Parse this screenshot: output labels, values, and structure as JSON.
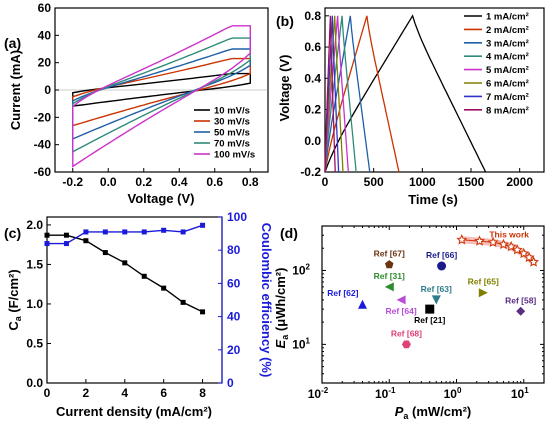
{
  "chart_data": [
    {
      "id": "a",
      "type": "line",
      "panel_label": "(a)",
      "xlabel": "Voltage (V)",
      "ylabel": "Current (mA)",
      "xlim": [
        -0.3,
        0.9
      ],
      "ylim": [
        -60,
        60
      ],
      "xticks": [
        "-0.2",
        "0.0",
        "0.2",
        "0.4",
        "0.6",
        "0.8"
      ],
      "yticks": [
        "60",
        "40",
        "20",
        "0",
        "-20",
        "-40",
        "-60"
      ],
      "legend_position": "bottom-right",
      "series": [
        {
          "name": "10 mV/s",
          "color": "#000000",
          "v": [
            -0.2,
            0.8
          ],
          "upper_end": 12,
          "upper_start": -2,
          "lower_start": -10,
          "lower_end": 5
        },
        {
          "name": "30 mV/s",
          "color": "#cc3300",
          "v": [
            -0.2,
            0.8
          ],
          "upper_end": 23,
          "upper_start": -5,
          "lower_start": -22,
          "lower_end": 12
        },
        {
          "name": "50 mV/s",
          "color": "#1f5fa8",
          "v": [
            -0.2,
            0.8
          ],
          "upper_end": 30,
          "upper_start": -8,
          "lower_start": -30,
          "lower_end": 18
        },
        {
          "name": "70 mV/s",
          "color": "#2e8b7a",
          "v": [
            -0.2,
            0.8
          ],
          "upper_end": 38,
          "upper_start": -10,
          "lower_start": -38,
          "lower_end": 22
        },
        {
          "name": "100 mV/s",
          "color": "#cc33cc",
          "v": [
            -0.2,
            0.8
          ],
          "upper_end": 47,
          "upper_start": -12,
          "lower_start": -47,
          "lower_end": 27
        }
      ]
    },
    {
      "id": "b",
      "type": "line",
      "panel_label": "(b)",
      "xlabel": "Time (s)",
      "ylabel": "Voltage (V)",
      "xlim": [
        0,
        2250
      ],
      "ylim": [
        -0.2,
        0.85
      ],
      "xticks": [
        "0",
        "500",
        "1000",
        "1500",
        "2000"
      ],
      "yticks": [
        "0.8",
        "0.6",
        "0.4",
        "0.2",
        "0.0",
        "-0.2"
      ],
      "legend_position": "top-right",
      "series": [
        {
          "name": "1 mA/cm²",
          "color": "#000000",
          "peak_t": 900,
          "end_t": 1650
        },
        {
          "name": "2 mA/cm²",
          "color": "#cc3300",
          "peak_t": 430,
          "end_t": 760
        },
        {
          "name": "3 mA/cm²",
          "color": "#1f5fa8",
          "peak_t": 260,
          "end_t": 460
        },
        {
          "name": "4 mA/cm²",
          "color": "#2e8b7a",
          "peak_t": 175,
          "end_t": 320
        },
        {
          "name": "5 mA/cm²",
          "color": "#cc33cc",
          "peak_t": 130,
          "end_t": 240
        },
        {
          "name": "6 mA/cm²",
          "color": "#808000",
          "peak_t": 100,
          "end_t": 185
        },
        {
          "name": "7 mA/cm²",
          "color": "#3333cc",
          "peak_t": 75,
          "end_t": 140
        },
        {
          "name": "8 mA/cm²",
          "color": "#a01060",
          "peak_t": 55,
          "end_t": 105
        }
      ]
    },
    {
      "id": "c",
      "type": "line",
      "panel_label": "(c)",
      "xlabel": "Current density (mA/cm²)",
      "ylabel_left_main": "C",
      "ylabel_left_sub": "a",
      "ylabel_left_rest": " (F/cm²)",
      "ylabel_right": "Coulombic efficiency (%)",
      "xlim": [
        0,
        9
      ],
      "ylim_left": [
        0,
        2.1
      ],
      "ylim_right": [
        0,
        100
      ],
      "xticks": [
        "0",
        "2",
        "4",
        "6",
        "8"
      ],
      "yticks_left": [
        "2.0",
        "1.5",
        "1.0",
        "0.5",
        "0.0"
      ],
      "yticks_right": [
        "100",
        "80",
        "60",
        "40",
        "20",
        "0"
      ],
      "series": [
        {
          "axis": "left",
          "color": "#000000",
          "x": [
            0,
            1,
            2,
            3,
            4,
            5,
            6,
            7,
            8
          ],
          "y": [
            1.87,
            1.87,
            1.8,
            1.65,
            1.52,
            1.35,
            1.2,
            1.02,
            0.9
          ]
        },
        {
          "axis": "right",
          "color": "#1a1adb",
          "x": [
            0,
            1,
            2,
            3,
            4,
            5,
            6,
            7,
            8
          ],
          "y": [
            84,
            84,
            91,
            91,
            91,
            91,
            92,
            91,
            95
          ]
        }
      ]
    },
    {
      "id": "d",
      "type": "scatter",
      "panel_label": "(d)",
      "xlabel_main": "P",
      "xlabel_sub": "a",
      "xlabel_rest": " (mW/cm²)",
      "ylabel_main": "E",
      "ylabel_sub": "a",
      "ylabel_rest": " (μWh/cm²)",
      "xscale": "log",
      "yscale": "log",
      "xlim": [
        0.01,
        20
      ],
      "ylim": [
        3,
        400
      ],
      "xticks": [
        {
          "base": "10",
          "exp": "-2",
          "value": 0.01
        },
        {
          "base": "10",
          "exp": "-1",
          "value": 0.1
        },
        {
          "base": "10",
          "exp": "0",
          "value": 1
        },
        {
          "base": "10",
          "exp": "1",
          "value": 10
        }
      ],
      "yticks": [
        {
          "base": "10",
          "exp": "2",
          "value": 100
        },
        {
          "base": "10",
          "exp": "1",
          "value": 10
        }
      ],
      "this_work": {
        "label": "This work",
        "color": "#cc3300",
        "points": [
          [
            1.2,
            260
          ],
          [
            2.2,
            250
          ],
          [
            3.5,
            240
          ],
          [
            5,
            225
          ],
          [
            6.5,
            210
          ],
          [
            8,
            190
          ],
          [
            10,
            170
          ],
          [
            12,
            150
          ],
          [
            14,
            130
          ]
        ]
      },
      "refs": [
        {
          "label": "Ref [67]",
          "x": 0.1,
          "y": 120,
          "color": "#6b3410",
          "marker": "pentagon",
          "label_pos": "above"
        },
        {
          "label": "Ref [66]",
          "x": 0.6,
          "y": 115,
          "color": "#1a1a8c",
          "marker": "circle",
          "label_pos": "above"
        },
        {
          "label": "Ref [31]",
          "x": 0.1,
          "y": 60,
          "color": "#2e8b2e",
          "marker": "triangle-left",
          "label_pos": "above"
        },
        {
          "label": "Ref [63]",
          "x": 0.5,
          "y": 40,
          "color": "#2e7b8c",
          "marker": "triangle-down",
          "label_pos": "above"
        },
        {
          "label": "Ref [65]",
          "x": 2.5,
          "y": 50,
          "color": "#808000",
          "marker": "triangle-right",
          "label_pos": "above"
        },
        {
          "label": "Ref [62]",
          "x": 0.04,
          "y": 35,
          "color": "#1a1adb",
          "marker": "triangle-up",
          "label_pos": "above-left"
        },
        {
          "label": "Ref [64]",
          "x": 0.15,
          "y": 40,
          "color": "#b84dd9",
          "marker": "triangle-left",
          "label_pos": "below"
        },
        {
          "label": "Ref [21]",
          "x": 0.4,
          "y": 30,
          "color": "#000000",
          "marker": "square",
          "label_pos": "below"
        },
        {
          "label": "Ref [58]",
          "x": 9,
          "y": 28,
          "color": "#5a2d82",
          "marker": "diamond",
          "label_pos": "above"
        },
        {
          "label": "Ref [68]",
          "x": 0.18,
          "y": 10,
          "color": "#e0407a",
          "marker": "hexagon",
          "label_pos": "above"
        }
      ]
    }
  ]
}
